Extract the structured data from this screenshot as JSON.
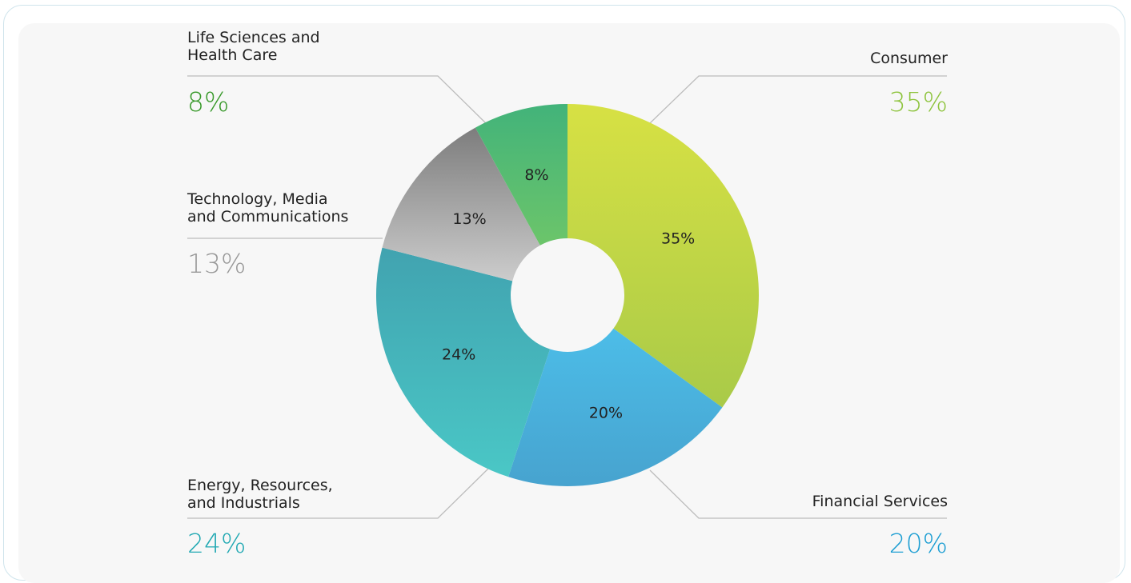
{
  "chart_data": {
    "type": "pie",
    "donut": true,
    "slices": [
      {
        "key": "consumer",
        "label_lines": [
          "Consumer"
        ],
        "value": 35,
        "value_label": "35%",
        "side_label": "35%",
        "color": "#a9ca48",
        "color_light": "#d7e144",
        "text_color": "#8fc43f"
      },
      {
        "key": "financial",
        "label_lines": [
          "Financial Services"
        ],
        "value": 20,
        "value_label": "20%",
        "side_label": "20%",
        "color": "#47a3cf",
        "color_light": "#4cbde8",
        "text_color": "#1f9fd3"
      },
      {
        "key": "energy",
        "label_lines": [
          "Energy, Resources,",
          "and Industrials"
        ],
        "value": 24,
        "value_label": "24%",
        "side_label": "24%",
        "color": "#4ac7c6",
        "color_light": "#41a3b0",
        "text_color": "#22a9b3"
      },
      {
        "key": "tmt",
        "label_lines": [
          "Technology, Media",
          "and Communications"
        ],
        "value": 13,
        "value_label": "13%",
        "side_label": "13%",
        "color": "#cccccc",
        "color_light": "#7d7d7d",
        "text_color": "#999999"
      },
      {
        "key": "lshc",
        "label_lines": [
          "Life Sciences and",
          "Health Care"
        ],
        "value": 8,
        "value_label": "8%",
        "side_label": "8%",
        "color": "#6cc56a",
        "color_light": "#42b37a",
        "text_color": "#3a9a2c"
      }
    ]
  }
}
